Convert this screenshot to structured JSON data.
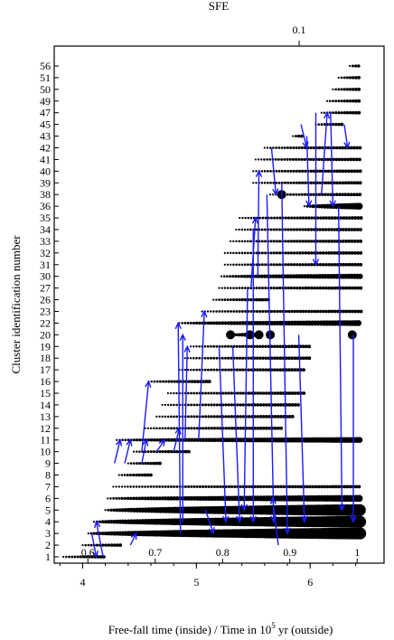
{
  "chart_data": {
    "type": "scatter",
    "title": "",
    "top_axis": {
      "label": "SFE",
      "ticks": [
        {
          "label": "0.1",
          "value": 0.1
        }
      ]
    },
    "ylabel": "Cluster identification number",
    "xlabel": "Free-fall time (inside) / Time in 10⁵ yr (outside)",
    "xlabel_parts": {
      "main": "Free-fall time (inside) / Time in 10",
      "exponent": "5",
      "suffix": " yr (outside)"
    },
    "outer_x": {
      "range": [
        3.75,
        6.65
      ],
      "ticks": [
        4,
        5,
        6
      ],
      "tick_labels": [
        "4",
        "5",
        "6"
      ]
    },
    "inner_x": {
      "range": [
        0.55,
        1.04
      ],
      "ticks": [
        0.6,
        0.7,
        0.8,
        0.9,
        1.0
      ],
      "tick_labels": [
        "0.6",
        "0.7",
        "0.8",
        "0.9",
        "1"
      ]
    },
    "y_categories": [
      "1",
      "2",
      "3",
      "4",
      "5",
      "6",
      "7",
      "8",
      "9",
      "10",
      "11",
      "12",
      "13",
      "14",
      "15",
      "16",
      "17",
      "18",
      "19",
      "20",
      "22",
      "23",
      "26",
      "27",
      "30",
      "31",
      "32",
      "33",
      "34",
      "35",
      "36",
      "38",
      "39",
      "40",
      "41",
      "42",
      "43",
      "45",
      "47",
      "49",
      "50",
      "51",
      "56"
    ],
    "series": [
      {
        "cluster": "1",
        "start": 3.83,
        "end": 4.2,
        "big": []
      },
      {
        "cluster": "2",
        "start": 4.0,
        "end": 4.35,
        "big": []
      },
      {
        "cluster": "3",
        "start": 4.05,
        "end": 6.45,
        "big": []
      },
      {
        "cluster": "4",
        "start": 4.1,
        "end": 6.45,
        "big": []
      },
      {
        "cluster": "5",
        "start": 4.2,
        "end": 6.45,
        "big": []
      },
      {
        "cluster": "6",
        "start": 4.22,
        "end": 6.45,
        "big": []
      },
      {
        "cluster": "7",
        "start": 4.27,
        "end": 6.45,
        "big": []
      },
      {
        "cluster": "8",
        "start": 4.32,
        "end": 4.6,
        "big": []
      },
      {
        "cluster": "9",
        "start": 4.4,
        "end": 4.7,
        "big": []
      },
      {
        "cluster": "10",
        "start": 4.45,
        "end": 4.95,
        "big": []
      },
      {
        "cluster": "11",
        "start": 4.3,
        "end": 6.45,
        "big": []
      },
      {
        "cluster": "12",
        "start": 4.55,
        "end": 5.75,
        "big": []
      },
      {
        "cluster": "13",
        "start": 4.65,
        "end": 5.85,
        "big": []
      },
      {
        "cluster": "14",
        "start": 4.7,
        "end": 5.9,
        "big": []
      },
      {
        "cluster": "15",
        "start": 4.75,
        "end": 5.95,
        "big": []
      },
      {
        "cluster": "16",
        "start": 4.58,
        "end": 5.12,
        "big": []
      },
      {
        "cluster": "17",
        "start": 4.85,
        "end": 5.95,
        "big": []
      },
      {
        "cluster": "18",
        "start": 4.9,
        "end": 6.0,
        "big": []
      },
      {
        "cluster": "19",
        "start": 4.95,
        "end": 6.0,
        "big": []
      },
      {
        "cluster": "20",
        "start": 5.3,
        "end": 5.55,
        "big": [
          5.3,
          5.47,
          5.55,
          5.65,
          6.37
        ]
      },
      {
        "cluster": "22",
        "start": 4.85,
        "end": 6.45,
        "big": []
      },
      {
        "cluster": "23",
        "start": 5.05,
        "end": 6.45,
        "big": []
      },
      {
        "cluster": "26",
        "start": 5.15,
        "end": 5.65,
        "big": []
      },
      {
        "cluster": "27",
        "start": 5.2,
        "end": 6.45,
        "big": []
      },
      {
        "cluster": "30",
        "start": 5.22,
        "end": 6.45,
        "big": []
      },
      {
        "cluster": "31",
        "start": 5.25,
        "end": 6.45,
        "big": []
      },
      {
        "cluster": "32",
        "start": 5.25,
        "end": 6.45,
        "big": []
      },
      {
        "cluster": "33",
        "start": 5.3,
        "end": 6.45,
        "big": []
      },
      {
        "cluster": "34",
        "start": 5.35,
        "end": 6.45,
        "big": []
      },
      {
        "cluster": "35",
        "start": 5.38,
        "end": 6.45,
        "big": []
      },
      {
        "cluster": "36",
        "start": 5.95,
        "end": 6.45,
        "big": []
      },
      {
        "cluster": "38",
        "start": 5.65,
        "end": 6.45,
        "big": [
          5.75
        ]
      },
      {
        "cluster": "39",
        "start": 5.5,
        "end": 6.45,
        "big": []
      },
      {
        "cluster": "40",
        "start": 5.5,
        "end": 6.45,
        "big": []
      },
      {
        "cluster": "41",
        "start": 5.52,
        "end": 6.45,
        "big": []
      },
      {
        "cluster": "42",
        "start": 5.6,
        "end": 6.45,
        "big": []
      },
      {
        "cluster": "43",
        "start": 5.85,
        "end": 5.95,
        "big": []
      },
      {
        "cluster": "45",
        "start": 6.05,
        "end": 6.3,
        "big": []
      },
      {
        "cluster": "47",
        "start": 6.1,
        "end": 6.45,
        "big": []
      },
      {
        "cluster": "49",
        "start": 6.15,
        "end": 6.45,
        "big": []
      },
      {
        "cluster": "50",
        "start": 6.2,
        "end": 6.45,
        "big": []
      },
      {
        "cluster": "51",
        "start": 6.25,
        "end": 6.45,
        "big": []
      },
      {
        "cluster": "56",
        "start": 6.35,
        "end": 6.45,
        "big": []
      }
    ],
    "merger_arrows": [
      {
        "x_from": 4.18,
        "from": "1",
        "x_to": 4.12,
        "to": "4"
      },
      {
        "x_from": 4.08,
        "from": "3",
        "x_to": 4.12,
        "to": "1"
      },
      {
        "x_from": 4.42,
        "from": "2",
        "x_to": 4.47,
        "to": "3"
      },
      {
        "x_from": 4.28,
        "from": "9",
        "x_to": 4.33,
        "to": "11"
      },
      {
        "x_from": 4.37,
        "from": "9",
        "x_to": 4.42,
        "to": "11"
      },
      {
        "x_from": 4.52,
        "from": "9",
        "x_to": 4.56,
        "to": "11"
      },
      {
        "x_from": 4.65,
        "from": "10",
        "x_to": 4.72,
        "to": "11"
      },
      {
        "x_from": 4.8,
        "from": "10",
        "x_to": 4.85,
        "to": "12"
      },
      {
        "x_from": 4.52,
        "from": "10",
        "x_to": 4.58,
        "to": "16"
      },
      {
        "x_from": 4.86,
        "from": "3",
        "x_to": 4.84,
        "to": "22"
      },
      {
        "x_from": 4.9,
        "from": "11",
        "x_to": 4.92,
        "to": "19"
      },
      {
        "x_from": 4.88,
        "from": "4",
        "x_to": 4.88,
        "to": "20"
      },
      {
        "x_from": 5.02,
        "from": "11",
        "x_to": 5.07,
        "to": "23"
      },
      {
        "x_from": 5.08,
        "from": "5",
        "x_to": 5.15,
        "to": "3"
      },
      {
        "x_from": 5.2,
        "from": "19",
        "x_to": 5.26,
        "to": "4"
      },
      {
        "x_from": 5.32,
        "from": "19",
        "x_to": 5.38,
        "to": "4"
      },
      {
        "x_from": 5.45,
        "from": "27",
        "x_to": 5.42,
        "to": "5"
      },
      {
        "x_from": 5.5,
        "from": "34",
        "x_to": 5.5,
        "to": "4"
      },
      {
        "x_from": 5.48,
        "from": "27",
        "x_to": 5.52,
        "to": "35"
      },
      {
        "x_from": 5.54,
        "from": "30",
        "x_to": 5.55,
        "to": "40"
      },
      {
        "x_from": 5.62,
        "from": "38",
        "x_to": 5.68,
        "to": "4"
      },
      {
        "x_from": 5.75,
        "from": "39",
        "x_to": 5.8,
        "to": "3"
      },
      {
        "x_from": 5.72,
        "from": "2",
        "x_to": 5.67,
        "to": "6"
      },
      {
        "x_from": 5.9,
        "from": "20",
        "x_to": 5.95,
        "to": "4"
      },
      {
        "x_from": 5.66,
        "from": "42",
        "x_to": 5.7,
        "to": "38"
      },
      {
        "x_from": 5.92,
        "from": "45",
        "x_to": 5.97,
        "to": "42"
      },
      {
        "x_from": 5.97,
        "from": "43",
        "x_to": 5.99,
        "to": "36"
      },
      {
        "x_from": 6.05,
        "from": "47",
        "x_to": 6.05,
        "to": "31"
      },
      {
        "x_from": 6.1,
        "from": "38",
        "x_to": 6.15,
        "to": "47"
      },
      {
        "x_from": 6.18,
        "from": "47",
        "x_to": 6.2,
        "to": "36"
      },
      {
        "x_from": 6.25,
        "from": "36",
        "x_to": 6.28,
        "to": "5"
      },
      {
        "x_from": 6.3,
        "from": "45",
        "x_to": 6.33,
        "to": "42"
      },
      {
        "x_from": 6.38,
        "from": "20",
        "x_to": 6.38,
        "to": "4"
      }
    ]
  }
}
